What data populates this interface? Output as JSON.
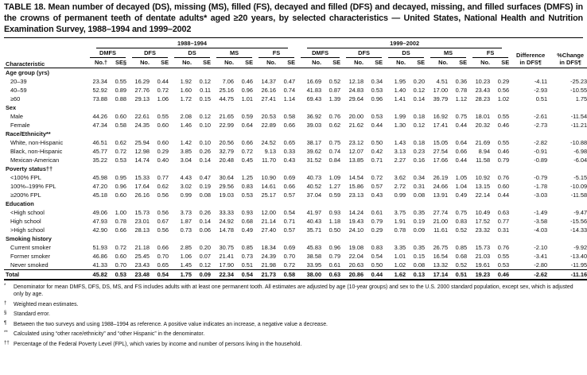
{
  "title": "TABLE 18. Mean number of decayed (DS), missing (MS), filled (FS), decayed and filled (DFS) and decayed, missing, and filled surfaces (DMFS) in the crowns of permanent teeth of dentate adults* aged ≥20 years, by selected characteristics — United States, National Health and Nutrition Examination Survey, 1988–1994 and 1999–2002",
  "table": {
    "characteristic_header": "Characteristic",
    "col_groups": [
      "1988–1994",
      "1999–2002"
    ],
    "measure_groups": [
      "DMFS",
      "DFS",
      "DS",
      "MS",
      "FS"
    ],
    "subheaders_first": [
      "No.†",
      "SE§"
    ],
    "subheaders": [
      "No.",
      "SE"
    ],
    "difference_header": [
      "Difference",
      "in DFS¶"
    ],
    "pct_change_header": [
      "%Change",
      "in DFS¶"
    ],
    "sections": [
      {
        "label": "Age group (yrs)",
        "rows": [
          {
            "label": "20–39",
            "values": [
              "23.34",
              "0.55",
              "16.29",
              "0.44",
              "1.92",
              "0.12",
              "7.06",
              "0.46",
              "14.37",
              "0.47",
              "16.69",
              "0.52",
              "12.18",
              "0.34",
              "1.95",
              "0.20",
              "4.51",
              "0.36",
              "10.23",
              "0.29",
              "-4.11",
              "-25.23"
            ]
          },
          {
            "label": "40–59",
            "values": [
              "52.92",
              "0.89",
              "27.76",
              "0.72",
              "1.60",
              "0.11",
              "25.16",
              "0.96",
              "26.16",
              "0.74",
              "41.83",
              "0.87",
              "24.83",
              "0.53",
              "1.40",
              "0.12",
              "17.00",
              "0.78",
              "23.43",
              "0.56",
              "-2.93",
              "-10.55"
            ]
          },
          {
            "label": "≥60",
            "values": [
              "73.88",
              "0.88",
              "29.13",
              "1.06",
              "1.72",
              "0.15",
              "44.75",
              "1.01",
              "27.41",
              "1.14",
              "69.43",
              "1.39",
              "29.64",
              "0.96",
              "1.41",
              "0.14",
              "39.79",
              "1.12",
              "28.23",
              "1.02",
              "0.51",
              "1.75"
            ]
          }
        ]
      },
      {
        "label": "Sex",
        "rows": [
          {
            "label": "Male",
            "values": [
              "44.26",
              "0.60",
              "22.61",
              "0.55",
              "2.08",
              "0.12",
              "21.65",
              "0.59",
              "20.53",
              "0.58",
              "36.92",
              "0.76",
              "20.00",
              "0.53",
              "1.99",
              "0.18",
              "16.92",
              "0.75",
              "18.01",
              "0.55",
              "-2.61",
              "-11.54"
            ]
          },
          {
            "label": "Female",
            "values": [
              "47.34",
              "0.58",
              "24.35",
              "0.60",
              "1.46",
              "0.10",
              "22.99",
              "0.64",
              "22.89",
              "0.66",
              "39.03",
              "0.62",
              "21.62",
              "0.44",
              "1.30",
              "0.12",
              "17.41",
              "0.44",
              "20.32",
              "0.46",
              "-2.73",
              "-11.21"
            ]
          }
        ]
      },
      {
        "label": "Race/Ethnicity**",
        "rows": [
          {
            "label": "White, non-Hispanic",
            "values": [
              "46.51",
              "0.62",
              "25.94",
              "0.60",
              "1.42",
              "0.10",
              "20.56",
              "0.66",
              "24.52",
              "0.65",
              "38.17",
              "0.75",
              "23.12",
              "0.50",
              "1.43",
              "0.18",
              "15.05",
              "0.64",
              "21.69",
              "0.55",
              "-2.82",
              "-10.88"
            ]
          },
          {
            "label": "Black, non-Hispanic",
            "values": [
              "45.77",
              "0.72",
              "12.98",
              "0.29",
              "3.85",
              "0.26",
              "32.79",
              "0.72",
              "9.13",
              "0.33",
              "39.62",
              "0.74",
              "12.07",
              "0.42",
              "3.13",
              "0.23",
              "27.54",
              "0.66",
              "8.94",
              "0.46",
              "-0.91",
              "-6.98"
            ]
          },
          {
            "label": "Mexican-American",
            "values": [
              "35.22",
              "0.53",
              "14.74",
              "0.40",
              "3.04",
              "0.14",
              "20.48",
              "0.45",
              "11.70",
              "0.43",
              "31.52",
              "0.84",
              "13.85",
              "0.71",
              "2.27",
              "0.16",
              "17.66",
              "0.44",
              "11.58",
              "0.79",
              "-0.89",
              "-6.04"
            ]
          }
        ]
      },
      {
        "label": "Poverty status††",
        "rows": [
          {
            "label": "<100% FPL",
            "values": [
              "45.98",
              "0.95",
              "15.33",
              "0.77",
              "4.43",
              "0.47",
              "30.64",
              "1.25",
              "10.90",
              "0.69",
              "40.73",
              "1.09",
              "14.54",
              "0.72",
              "3.62",
              "0.34",
              "26.19",
              "1.05",
              "10.92",
              "0.76",
              "-0.79",
              "-5.15"
            ]
          },
          {
            "label": "100%–199% FPL",
            "values": [
              "47.20",
              "0.96",
              "17.64",
              "0.62",
              "3.02",
              "0.19",
              "29.56",
              "0.83",
              "14.61",
              "0.66",
              "40.52",
              "1.27",
              "15.86",
              "0.57",
              "2.72",
              "0.31",
              "24.66",
              "1.04",
              "13.15",
              "0.60",
              "-1.78",
              "-10.09"
            ]
          },
          {
            "label": "≥200% FPL",
            "values": [
              "45.18",
              "0.60",
              "26.16",
              "0.56",
              "0.99",
              "0.08",
              "19.03",
              "0.53",
              "25.17",
              "0.57",
              "37.04",
              "0.59",
              "23.13",
              "0.43",
              "0.99",
              "0.08",
              "13.91",
              "0.49",
              "22.14",
              "0.44",
              "-3.03",
              "-11.58"
            ]
          }
        ]
      },
      {
        "label": "Education",
        "rows": [
          {
            "label": "<High school",
            "values": [
              "49.06",
              "1.00",
              "15.73",
              "0.56",
              "3.73",
              "0.26",
              "33.33",
              "0.93",
              "12.00",
              "0.54",
              "41.97",
              "0.93",
              "14.24",
              "0.61",
              "3.75",
              "0.35",
              "27.74",
              "0.75",
              "10.49",
              "0.63",
              "-1.49",
              "-9.47"
            ]
          },
          {
            "label": "High school",
            "values": [
              "47.93",
              "0.78",
              "23.01",
              "0.67",
              "1.87",
              "0.14",
              "24.92",
              "0.68",
              "21.14",
              "0.71",
              "40.43",
              "1.18",
              "19.43",
              "0.79",
              "1.91",
              "0.19",
              "21.00",
              "0.83",
              "17.52",
              "0.77",
              "-3.58",
              "-15.56"
            ]
          },
          {
            "label": ">High school",
            "values": [
              "42.90",
              "0.66",
              "28.13",
              "0.56",
              "0.73",
              "0.06",
              "14.78",
              "0.49",
              "27.40",
              "0.57",
              "35.71",
              "0.50",
              "24.10",
              "0.29",
              "0.78",
              "0.09",
              "11.61",
              "0.52",
              "23.32",
              "0.31",
              "-4.03",
              "-14.33"
            ]
          }
        ]
      },
      {
        "label": "Smoking history",
        "rows": [
          {
            "label": "Current smoker",
            "values": [
              "51.93",
              "0.72",
              "21.18",
              "0.66",
              "2.85",
              "0.20",
              "30.75",
              "0.85",
              "18.34",
              "0.69",
              "45.83",
              "0.96",
              "19.08",
              "0.83",
              "3.35",
              "0.35",
              "26.75",
              "0.85",
              "15.73",
              "0.76",
              "-2.10",
              "-9.92"
            ]
          },
          {
            "label": "Former smoker",
            "values": [
              "46.86",
              "0.60",
              "25.45",
              "0.70",
              "1.06",
              "0.07",
              "21.41",
              "0.73",
              "24.39",
              "0.70",
              "38.58",
              "0.79",
              "22.04",
              "0.54",
              "1.01",
              "0.15",
              "16.54",
              "0.68",
              "21.03",
              "0.55",
              "-3.41",
              "-13.40"
            ]
          },
          {
            "label": "Never smoked",
            "values": [
              "41.33",
              "0.70",
              "23.43",
              "0.65",
              "1.45",
              "0.12",
              "17.90",
              "0.51",
              "21.98",
              "0.72",
              "33.95",
              "0.61",
              "20.63",
              "0.50",
              "1.02",
              "0.08",
              "13.32",
              "0.52",
              "19.61",
              "0.53",
              "-2.80",
              "-11.95"
            ]
          }
        ]
      }
    ],
    "total": {
      "label": "Total",
      "values": [
        "45.82",
        "0.53",
        "23.48",
        "0.54",
        "1.75",
        "0.09",
        "22.34",
        "0.54",
        "21.73",
        "0.58",
        "38.00",
        "0.63",
        "20.86",
        "0.44",
        "1.62",
        "0.13",
        "17.14",
        "0.51",
        "19.23",
        "0.46",
        "-2.62",
        "-11.16"
      ]
    }
  },
  "footnotes": [
    {
      "marker": "*",
      "text": "Denominator for mean DMFS, DFS, DS, MS, and FS includes adults with at least one permanent tooth. All estimates are adjusted by age (10-year groups) and sex to the U.S. 2000 standard population, except sex, which is adjusted only by age."
    },
    {
      "marker": "†",
      "text": "Weighted mean estimates."
    },
    {
      "marker": "§",
      "text": "Standard error."
    },
    {
      "marker": "¶",
      "text": "Between the two surveys and using 1988–1994 as reference. A positive value indicates an increase, a negative value a decrease."
    },
    {
      "marker": "**",
      "text": "Calculated using “other race/ethnicity” and “other Hispanic” in the denominator."
    },
    {
      "marker": "††",
      "text": "Percentage of the Federal Poverty Level (FPL), which varies by income and number of persons living in the household."
    }
  ]
}
